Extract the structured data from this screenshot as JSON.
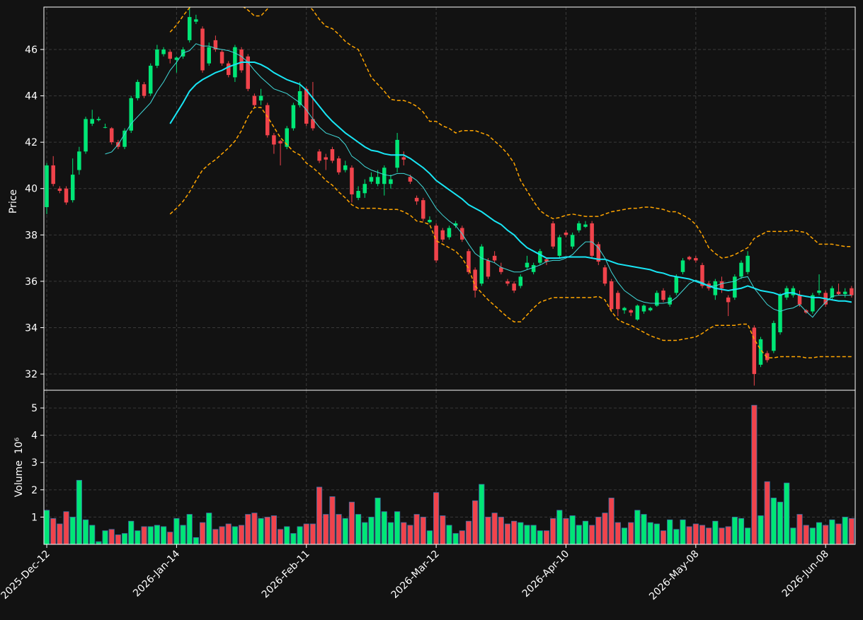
{
  "chart_data": {
    "type": "candlestick",
    "ylabel": "Price",
    "grid": true,
    "up_color": "#00e676",
    "down_color": "#f0434b",
    "ylim": [
      31.3,
      47.83
    ],
    "yticks": [
      32,
      34,
      36,
      38,
      40,
      42,
      44,
      46
    ],
    "categories": [
      "2025-Dec-12",
      null,
      null,
      null,
      null,
      null,
      null,
      null,
      null,
      null,
      null,
      null,
      null,
      null,
      null,
      null,
      null,
      null,
      null,
      null,
      "2026-Jan-14",
      null,
      null,
      null,
      null,
      null,
      null,
      null,
      null,
      null,
      null,
      null,
      null,
      null,
      null,
      null,
      null,
      null,
      null,
      null,
      "2026-Feb-11",
      null,
      null,
      null,
      null,
      null,
      null,
      null,
      null,
      null,
      null,
      null,
      null,
      null,
      null,
      null,
      null,
      null,
      null,
      null,
      "2026-Mar-12",
      null,
      null,
      null,
      null,
      null,
      null,
      null,
      null,
      null,
      null,
      null,
      null,
      null,
      null,
      null,
      null,
      null,
      null,
      null,
      "2026-Apr-10",
      null,
      null,
      null,
      null,
      null,
      null,
      null,
      null,
      null,
      null,
      null,
      null,
      null,
      null,
      null,
      null,
      null,
      null,
      null,
      "2026-May-08",
      null,
      null,
      null,
      null,
      null,
      null,
      null,
      null,
      null,
      null,
      null,
      null,
      null,
      null,
      null,
      null,
      null,
      null,
      null,
      "2026-Jun-08",
      null,
      null,
      null,
      null
    ],
    "open": [
      39.2,
      41.0,
      40.0,
      40.0,
      39.5,
      40.8,
      41.6,
      42.8,
      42.95,
      42.65,
      42.6,
      42.0,
      41.8,
      42.5,
      43.9,
      44.5,
      44.1,
      45.3,
      45.8,
      45.9,
      45.55,
      45.7,
      46.4,
      47.2,
      46.9,
      45.4,
      46.4,
      45.9,
      45.4,
      44.8,
      46.0,
      45.7,
      44.0,
      43.8,
      43.6,
      42.3,
      42.05,
      41.8,
      42.6,
      43.6,
      44.3,
      43.0,
      41.6,
      41.35,
      41.7,
      41.3,
      40.8,
      40.9,
      39.6,
      39.8,
      40.3,
      40.2,
      40.2,
      40.2,
      40.9,
      41.35,
      40.5,
      39.6,
      39.5,
      38.55,
      38.4,
      38.2,
      37.9,
      38.4,
      38.3,
      37.3,
      36.5,
      35.9,
      36.9,
      37.1,
      36.6,
      36.0,
      35.9,
      35.8,
      36.6,
      36.4,
      36.8,
      36.95,
      38.5,
      37.1,
      38.1,
      37.5,
      38.2,
      38.35,
      38.5,
      37.6,
      36.6,
      36.0,
      35.5,
      34.75,
      34.75,
      34.35,
      34.7,
      34.75,
      34.95,
      35.6,
      35.0,
      35.5,
      36.4,
      37.05,
      37.0,
      36.7,
      35.9,
      35.4,
      36.0,
      35.3,
      35.3,
      36.2,
      36.4,
      34.0,
      32.4,
      32.9,
      33.0,
      33.8,
      35.3,
      35.4,
      35.4,
      34.75,
      34.7,
      35.5,
      35.5,
      35.3,
      35.55,
      35.45,
      35.7
    ],
    "high": [
      41.1,
      41.4,
      40.1,
      40.1,
      41.3,
      41.8,
      43.1,
      43.4,
      43.1,
      42.8,
      42.65,
      42.1,
      42.6,
      44.0,
      44.7,
      44.6,
      45.4,
      46.2,
      46.1,
      46.0,
      45.7,
      46.1,
      47.8,
      47.5,
      47.0,
      46.3,
      46.6,
      46.0,
      45.5,
      46.2,
      46.1,
      45.8,
      44.1,
      44.3,
      43.7,
      42.4,
      42.1,
      42.7,
      43.7,
      44.6,
      44.4,
      44.6,
      41.7,
      41.5,
      41.8,
      41.4,
      41.2,
      41.0,
      40.1,
      40.4,
      40.7,
      40.8,
      41.0,
      40.6,
      42.4,
      41.6,
      40.6,
      39.7,
      39.6,
      38.8,
      38.5,
      38.3,
      38.4,
      38.6,
      38.4,
      37.4,
      36.6,
      37.6,
      37.0,
      37.3,
      36.8,
      36.1,
      36.0,
      36.3,
      37.1,
      36.8,
      37.4,
      37.0,
      38.6,
      38.0,
      38.2,
      38.1,
      38.6,
      38.6,
      38.6,
      37.7,
      36.7,
      36.1,
      35.6,
      34.9,
      34.8,
      35.0,
      35.0,
      34.9,
      35.6,
      35.7,
      35.4,
      36.3,
      37.0,
      37.1,
      37.1,
      36.8,
      36.0,
      36.1,
      36.2,
      35.4,
      36.3,
      36.9,
      37.3,
      34.1,
      33.6,
      33.0,
      34.3,
      35.5,
      35.8,
      35.8,
      35.6,
      34.8,
      35.5,
      36.3,
      35.6,
      35.8,
      35.9,
      35.7,
      35.8
    ],
    "low": [
      38.9,
      40.1,
      39.8,
      39.3,
      39.4,
      40.6,
      41.5,
      42.7,
      42.9,
      42.6,
      41.9,
      41.7,
      41.7,
      42.4,
      43.8,
      43.9,
      44.0,
      45.2,
      45.7,
      45.4,
      45.0,
      45.6,
      46.3,
      47.1,
      45.0,
      45.3,
      45.9,
      45.3,
      44.8,
      44.6,
      45.0,
      44.2,
      43.5,
      43.6,
      42.2,
      41.5,
      41.0,
      41.7,
      42.5,
      43.5,
      42.7,
      42.5,
      41.1,
      40.8,
      41.1,
      40.6,
      40.7,
      39.4,
      39.5,
      39.6,
      40.2,
      40.1,
      39.7,
      40.0,
      40.7,
      41.0,
      40.2,
      39.3,
      38.6,
      38.5,
      36.8,
      37.7,
      37.8,
      38.3,
      37.7,
      36.3,
      35.3,
      35.8,
      36.1,
      36.8,
      36.3,
      35.8,
      35.5,
      35.7,
      36.5,
      36.3,
      36.7,
      36.7,
      37.4,
      37.0,
      37.9,
      37.4,
      38.1,
      38.3,
      37.0,
      36.7,
      35.8,
      34.7,
      34.5,
      34.6,
      34.5,
      34.3,
      34.6,
      34.7,
      34.9,
      35.1,
      34.9,
      35.4,
      36.3,
      36.9,
      36.8,
      35.7,
      35.6,
      35.2,
      35.5,
      34.5,
      35.2,
      36.1,
      36.3,
      31.5,
      32.3,
      32.5,
      32.9,
      33.7,
      35.2,
      35.3,
      34.9,
      34.6,
      34.6,
      35.4,
      34.9,
      35.2,
      35.4,
      35.3,
      35.3
    ],
    "close": [
      41.0,
      40.2,
      39.9,
      39.4,
      40.6,
      41.6,
      43.0,
      43.0,
      43.0,
      42.65,
      42.0,
      41.8,
      42.5,
      43.9,
      44.6,
      44.0,
      45.3,
      46.0,
      46.0,
      45.6,
      45.65,
      46.0,
      47.4,
      47.3,
      45.1,
      46.1,
      46.0,
      45.4,
      44.9,
      46.1,
      45.1,
      44.3,
      43.6,
      44.0,
      42.3,
      41.9,
      41.95,
      42.6,
      43.6,
      44.2,
      42.8,
      42.6,
      41.2,
      41.25,
      41.2,
      40.7,
      41.0,
      39.75,
      39.9,
      40.2,
      40.5,
      40.5,
      40.9,
      40.4,
      42.1,
      41.25,
      40.3,
      39.45,
      38.7,
      38.65,
      36.9,
      37.8,
      38.3,
      38.5,
      37.8,
      36.4,
      35.6,
      37.5,
      36.2,
      36.9,
      36.4,
      35.9,
      35.6,
      36.2,
      36.8,
      36.7,
      37.3,
      36.85,
      37.5,
      37.9,
      38.0,
      38.0,
      38.5,
      38.45,
      37.1,
      36.85,
      35.9,
      34.8,
      34.8,
      34.85,
      34.65,
      34.95,
      34.95,
      34.85,
      35.5,
      35.2,
      35.3,
      36.2,
      36.9,
      36.95,
      36.9,
      35.8,
      35.7,
      36.0,
      35.7,
      35.1,
      36.2,
      36.8,
      37.1,
      32.0,
      33.5,
      32.6,
      34.2,
      35.4,
      35.7,
      35.7,
      35.0,
      34.65,
      35.4,
      35.6,
      35.0,
      35.7,
      35.45,
      35.55,
      35.4
    ],
    "overlays": [
      {
        "color": "#40d9d9",
        "width": 1,
        "dash": false,
        "values": [
          null,
          null,
          null,
          null,
          null,
          null,
          null,
          null,
          null,
          41.49,
          41.58,
          41.9,
          42.35,
          42.8,
          43.1,
          43.4,
          43.7,
          44.2,
          44.6,
          45.1,
          45.45,
          45.85,
          45.95,
          46.25,
          46.15,
          46.15,
          46.05,
          46.0,
          45.95,
          45.85,
          45.7,
          45.45,
          45.1,
          44.8,
          44.55,
          44.3,
          44.2,
          44.1,
          43.9,
          43.7,
          43.4,
          43.0,
          42.65,
          42.4,
          42.3,
          42.2,
          41.9,
          41.4,
          41.2,
          40.95,
          40.8,
          40.7,
          40.6,
          40.55,
          40.65,
          40.65,
          40.55,
          40.35,
          40.05,
          39.6,
          39.15,
          38.85,
          38.6,
          38.4,
          38.05,
          37.6,
          37.2,
          37.0,
          36.9,
          36.8,
          36.6,
          36.5,
          36.4,
          36.4,
          36.5,
          36.6,
          36.7,
          36.85,
          36.9,
          36.9,
          37.0,
          37.15,
          37.45,
          37.7,
          37.7,
          37.45,
          37.0,
          36.4,
          35.95,
          35.6,
          35.4,
          35.2,
          35.1,
          35.05,
          35.05,
          35.05,
          35.1,
          35.3,
          35.6,
          35.9,
          36.05,
          35.95,
          35.8,
          35.8,
          35.9,
          35.95,
          36.0,
          36.15,
          36.2,
          35.7,
          35.35,
          35.0,
          34.8,
          34.7,
          34.8,
          34.85,
          35.0,
          34.7,
          34.45,
          34.8,
          35.1,
          35.35,
          35.4,
          35.4,
          35.4
        ]
      },
      {
        "color": "#18e6f5",
        "width": 2,
        "dash": false,
        "values": [
          null,
          null,
          null,
          null,
          null,
          null,
          null,
          null,
          null,
          null,
          null,
          null,
          null,
          null,
          null,
          null,
          null,
          null,
          null,
          42.8,
          43.25,
          43.7,
          44.2,
          44.5,
          44.7,
          44.85,
          45.0,
          45.1,
          45.25,
          45.35,
          45.45,
          45.45,
          45.45,
          45.35,
          45.2,
          45.0,
          44.85,
          44.7,
          44.6,
          44.5,
          44.25,
          43.9,
          43.55,
          43.2,
          42.9,
          42.65,
          42.4,
          42.2,
          42.0,
          41.8,
          41.65,
          41.6,
          41.5,
          41.45,
          41.45,
          41.45,
          41.3,
          41.1,
          40.9,
          40.65,
          40.35,
          40.15,
          39.95,
          39.75,
          39.55,
          39.3,
          39.15,
          39.0,
          38.8,
          38.6,
          38.45,
          38.2,
          38.0,
          37.7,
          37.45,
          37.3,
          37.15,
          37.0,
          37.0,
          37.0,
          37.05,
          37.05,
          37.05,
          37.05,
          37.0,
          36.95,
          36.95,
          36.85,
          36.75,
          36.7,
          36.65,
          36.6,
          36.55,
          36.5,
          36.4,
          36.35,
          36.25,
          36.2,
          36.15,
          36.1,
          36.0,
          35.9,
          35.8,
          35.7,
          35.65,
          35.6,
          35.65,
          35.7,
          35.8,
          35.7,
          35.6,
          35.55,
          35.5,
          35.4,
          35.5,
          35.5,
          35.4,
          35.35,
          35.3,
          35.3,
          35.25,
          35.2,
          35.15,
          35.15,
          35.1
        ]
      },
      {
        "color": "#ffa500",
        "width": 1.5,
        "dash": true,
        "values": [
          null,
          null,
          null,
          null,
          null,
          null,
          null,
          null,
          null,
          null,
          null,
          null,
          null,
          null,
          null,
          null,
          null,
          null,
          null,
          46.75,
          47.05,
          47.45,
          47.8,
          48.3,
          48.45,
          48.5,
          48.5,
          48.45,
          48.3,
          48.15,
          47.9,
          47.7,
          47.45,
          47.45,
          47.75,
          48.15,
          48.4,
          48.6,
          48.45,
          48.2,
          48.0,
          47.7,
          47.3,
          47.0,
          46.9,
          46.65,
          46.35,
          46.15,
          46.0,
          45.4,
          44.8,
          44.5,
          44.2,
          43.85,
          43.8,
          43.8,
          43.7,
          43.55,
          43.3,
          42.9,
          42.9,
          42.7,
          42.6,
          42.4,
          42.5,
          42.5,
          42.5,
          42.4,
          42.3,
          42.05,
          41.8,
          41.5,
          41.1,
          40.35,
          39.9,
          39.45,
          39.05,
          38.85,
          38.7,
          38.75,
          38.85,
          38.9,
          38.85,
          38.8,
          38.8,
          38.8,
          38.9,
          39.0,
          39.05,
          39.1,
          39.15,
          39.15,
          39.2,
          39.2,
          39.15,
          39.1,
          39.0,
          39.0,
          38.85,
          38.7,
          38.45,
          38.0,
          37.45,
          37.2,
          37.0,
          37.05,
          37.15,
          37.3,
          37.45,
          37.85,
          38.0,
          38.15,
          38.15,
          38.15,
          38.15,
          38.2,
          38.15,
          38.1,
          37.85,
          37.6,
          37.6,
          37.6,
          37.55,
          37.5,
          37.5
        ]
      },
      {
        "color": "#ffa500",
        "width": 1.5,
        "dash": true,
        "values": [
          null,
          null,
          null,
          null,
          null,
          null,
          null,
          null,
          null,
          null,
          null,
          null,
          null,
          null,
          null,
          null,
          null,
          null,
          null,
          38.9,
          39.15,
          39.45,
          39.85,
          40.35,
          40.8,
          41.05,
          41.25,
          41.5,
          41.75,
          42.05,
          42.5,
          43.1,
          43.5,
          43.5,
          43.1,
          42.65,
          42.2,
          41.9,
          41.6,
          41.45,
          41.1,
          40.9,
          40.65,
          40.35,
          40.15,
          39.85,
          39.6,
          39.3,
          39.15,
          39.15,
          39.15,
          39.15,
          39.1,
          39.1,
          39.1,
          39.0,
          38.85,
          38.6,
          38.55,
          38.45,
          37.75,
          37.6,
          37.45,
          37.3,
          37.0,
          36.55,
          35.8,
          35.5,
          35.2,
          34.95,
          34.7,
          34.45,
          34.25,
          34.25,
          34.55,
          34.85,
          35.1,
          35.2,
          35.3,
          35.3,
          35.3,
          35.3,
          35.3,
          35.3,
          35.3,
          35.35,
          35.2,
          34.7,
          34.35,
          34.2,
          34.1,
          33.95,
          33.8,
          33.65,
          33.55,
          33.45,
          33.45,
          33.45,
          33.5,
          33.55,
          33.6,
          33.75,
          33.95,
          34.1,
          34.1,
          34.1,
          34.1,
          34.15,
          34.15,
          33.5,
          33.05,
          32.7,
          32.7,
          32.75,
          32.75,
          32.75,
          32.75,
          32.7,
          32.7,
          32.75,
          32.75,
          32.75,
          32.75,
          32.75,
          32.75
        ]
      }
    ],
    "volume": {
      "ylabel": "Volume  10⁶",
      "edgecolor": "#3a6ea5",
      "ylim": [
        0,
        5.65
      ],
      "yticks": [
        1,
        2,
        3,
        4,
        5
      ],
      "values": [
        1.25,
        0.95,
        0.75,
        1.2,
        1.0,
        2.35,
        0.9,
        0.7,
        0.1,
        0.5,
        0.55,
        0.35,
        0.4,
        0.85,
        0.5,
        0.65,
        0.65,
        0.7,
        0.65,
        0.45,
        0.95,
        0.7,
        1.1,
        0.25,
        0.8,
        1.15,
        0.55,
        0.65,
        0.75,
        0.65,
        0.7,
        1.1,
        1.15,
        0.95,
        1.0,
        1.05,
        0.55,
        0.65,
        0.4,
        0.65,
        0.75,
        0.75,
        2.1,
        1.1,
        1.75,
        1.1,
        0.95,
        1.55,
        1.1,
        0.8,
        1.0,
        1.7,
        1.2,
        0.8,
        1.2,
        0.8,
        0.7,
        1.1,
        1.0,
        0.5,
        1.9,
        1.05,
        0.7,
        0.4,
        0.5,
        0.85,
        1.6,
        2.2,
        1.0,
        1.15,
        1.0,
        0.75,
        0.85,
        0.8,
        0.7,
        0.7,
        0.5,
        0.5,
        0.95,
        1.25,
        0.95,
        1.05,
        0.7,
        0.85,
        0.7,
        1.0,
        1.15,
        1.7,
        0.8,
        0.6,
        0.8,
        1.25,
        1.1,
        0.8,
        0.75,
        0.5,
        0.9,
        0.55,
        0.9,
        0.65,
        0.75,
        0.7,
        0.6,
        0.85,
        0.6,
        0.65,
        1.0,
        0.95,
        0.6,
        5.1,
        1.05,
        2.3,
        1.7,
        1.55,
        2.25,
        0.6,
        1.1,
        0.7,
        0.6,
        0.8,
        0.7,
        0.9,
        0.75,
        1.0,
        0.95
      ]
    }
  }
}
